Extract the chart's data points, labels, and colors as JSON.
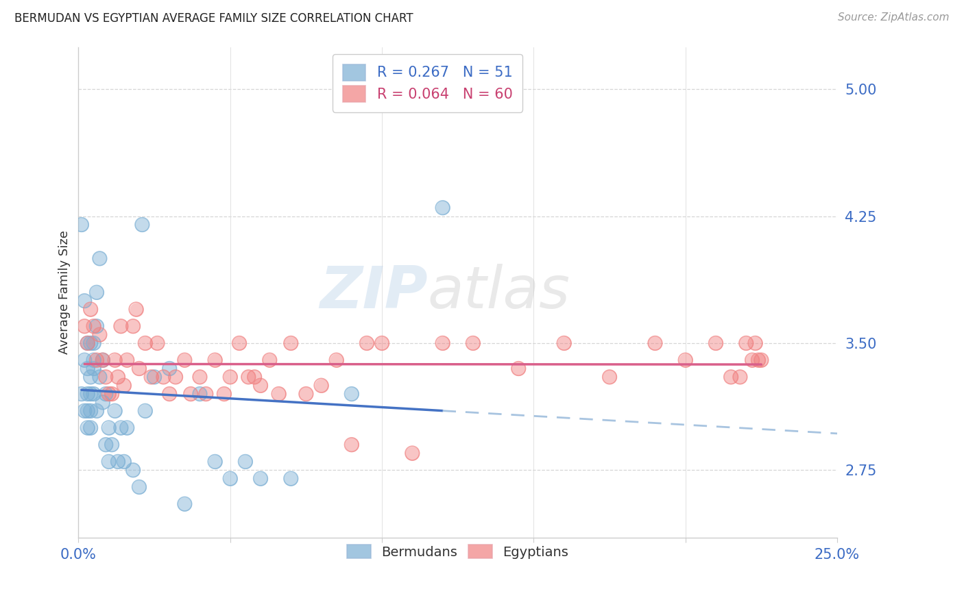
{
  "title": "BERMUDAN VS EGYPTIAN AVERAGE FAMILY SIZE CORRELATION CHART",
  "source": "Source: ZipAtlas.com",
  "ylabel": "Average Family Size",
  "yticks": [
    2.75,
    3.5,
    4.25,
    5.0
  ],
  "xlim": [
    0.0,
    0.25
  ],
  "ylim": [
    2.35,
    5.25
  ],
  "bermudan_R": "0.267",
  "bermudan_N": "51",
  "egyptian_R": "0.064",
  "egyptian_N": "60",
  "bermudan_color": "#7BAFD4",
  "egyptian_color": "#F08080",
  "trend_blue_color": "#4472C4",
  "trend_pink_color": "#D95F8A",
  "trend_dash_color": "#A8C4E0",
  "watermark_zip": "ZIP",
  "watermark_atlas": "atlas",
  "bermudan_x": [
    0.001,
    0.001,
    0.002,
    0.002,
    0.002,
    0.003,
    0.003,
    0.003,
    0.003,
    0.003,
    0.004,
    0.004,
    0.004,
    0.004,
    0.004,
    0.005,
    0.005,
    0.005,
    0.005,
    0.006,
    0.006,
    0.006,
    0.007,
    0.007,
    0.008,
    0.008,
    0.009,
    0.009,
    0.01,
    0.01,
    0.011,
    0.012,
    0.013,
    0.014,
    0.015,
    0.016,
    0.018,
    0.02,
    0.021,
    0.022,
    0.025,
    0.03,
    0.035,
    0.04,
    0.045,
    0.05,
    0.055,
    0.06,
    0.07,
    0.09,
    0.12
  ],
  "bermudan_y": [
    4.2,
    3.2,
    3.75,
    3.4,
    3.1,
    3.5,
    3.35,
    3.2,
    3.1,
    3.0,
    3.5,
    3.3,
    3.2,
    3.1,
    3.0,
    3.5,
    3.4,
    3.35,
    3.2,
    3.8,
    3.6,
    3.1,
    4.0,
    3.3,
    3.4,
    3.15,
    3.2,
    2.9,
    3.0,
    2.8,
    2.9,
    3.1,
    2.8,
    3.0,
    2.8,
    3.0,
    2.75,
    2.65,
    4.2,
    3.1,
    3.3,
    3.35,
    2.55,
    3.2,
    2.8,
    2.7,
    2.8,
    2.7,
    2.7,
    3.2,
    4.3
  ],
  "egyptian_x": [
    0.002,
    0.003,
    0.004,
    0.005,
    0.006,
    0.007,
    0.008,
    0.009,
    0.01,
    0.011,
    0.012,
    0.013,
    0.014,
    0.015,
    0.016,
    0.018,
    0.019,
    0.02,
    0.022,
    0.024,
    0.026,
    0.028,
    0.03,
    0.032,
    0.035,
    0.037,
    0.04,
    0.042,
    0.045,
    0.048,
    0.05,
    0.053,
    0.056,
    0.058,
    0.06,
    0.063,
    0.066,
    0.07,
    0.075,
    0.08,
    0.085,
    0.09,
    0.095,
    0.1,
    0.11,
    0.12,
    0.13,
    0.145,
    0.16,
    0.175,
    0.19,
    0.2,
    0.21,
    0.215,
    0.218,
    0.22,
    0.222,
    0.223,
    0.224,
    0.225
  ],
  "egyptian_y": [
    3.6,
    3.5,
    3.7,
    3.6,
    3.4,
    3.55,
    3.4,
    3.3,
    3.2,
    3.2,
    3.4,
    3.3,
    3.6,
    3.25,
    3.4,
    3.6,
    3.7,
    3.35,
    3.5,
    3.3,
    3.5,
    3.3,
    3.2,
    3.3,
    3.4,
    3.2,
    3.3,
    3.2,
    3.4,
    3.2,
    3.3,
    3.5,
    3.3,
    3.3,
    3.25,
    3.4,
    3.2,
    3.5,
    3.2,
    3.25,
    3.4,
    2.9,
    3.5,
    3.5,
    2.85,
    3.5,
    3.5,
    3.35,
    3.5,
    3.3,
    3.5,
    3.4,
    3.5,
    3.3,
    3.3,
    3.5,
    3.4,
    3.5,
    3.4,
    3.4
  ]
}
